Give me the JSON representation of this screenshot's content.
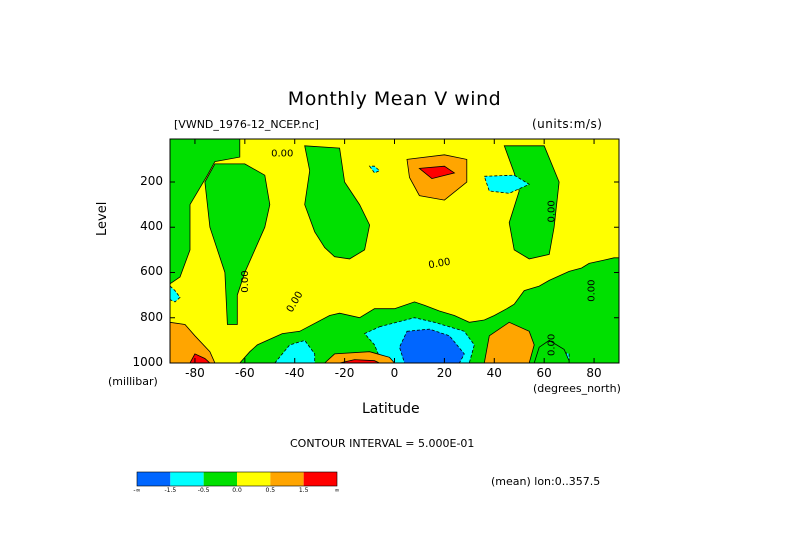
{
  "chart_data": {
    "type": "heatmap",
    "title": "Monthly Mean V wind",
    "dataset": "[VWND_1976-12_NCEP.nc]",
    "units": "(units:m/s)",
    "xlabel": "Latitude",
    "x_unit": "(degrees_north)",
    "ylabel": "Level",
    "y_unit": "(millibar)",
    "xlim": [
      -90,
      90
    ],
    "ylim": [
      1000,
      10
    ],
    "y_inverted": true,
    "x_ticks": [
      "-80",
      "-60",
      "-40",
      "-20",
      "0",
      "20",
      "40",
      "60",
      "80"
    ],
    "x_tick_values": [
      -80,
      -60,
      -40,
      -20,
      0,
      20,
      40,
      60,
      80
    ],
    "y_ticks": [
      "200",
      "400",
      "600",
      "800",
      "1000"
    ],
    "y_tick_values": [
      200,
      400,
      600,
      800,
      1000
    ],
    "contour_label": "0.00",
    "contour_interval": "CONTOUR INTERVAL = 5.000E-01",
    "mean_note": "(mean) lon:0..357.5",
    "colorbar": {
      "colors": [
        "#0066ff",
        "#00ffff",
        "#00e000",
        "#ffff00",
        "#ffa500",
        "#ff0000"
      ],
      "tick_labels": [
        "-∞",
        "-1.5",
        "-0.5",
        "0.0",
        "0.5",
        "1.5",
        "∞"
      ]
    },
    "regions": [
      {
        "level": 0,
        "color": "#00e000",
        "poly": [
          [
            -90,
            10
          ],
          [
            90,
            10
          ],
          [
            90,
            1000
          ],
          [
            -90,
            1000
          ]
        ]
      },
      {
        "level": 1,
        "color": "#ffff00",
        "poly": [
          [
            -90,
            10
          ],
          [
            -62,
            10
          ],
          [
            -62,
            90
          ],
          [
            -72,
            110
          ],
          [
            -75,
            170
          ],
          [
            -82,
            300
          ],
          [
            -82,
            500
          ],
          [
            -86,
            620
          ],
          [
            -90,
            650
          ],
          [
            -90,
            1000
          ],
          [
            -62,
            1000
          ],
          [
            -58,
            950
          ],
          [
            -55,
            920
          ],
          [
            -45,
            870
          ],
          [
            -38,
            860
          ],
          [
            -26,
            790
          ],
          [
            -22,
            780
          ],
          [
            -14,
            800
          ],
          [
            -8,
            760
          ],
          [
            0,
            760
          ],
          [
            8,
            730
          ],
          [
            12,
            745
          ],
          [
            18,
            770
          ],
          [
            24,
            790
          ],
          [
            28,
            810
          ],
          [
            30,
            820
          ],
          [
            36,
            810
          ],
          [
            40,
            790
          ],
          [
            45,
            760
          ],
          [
            48,
            740
          ],
          [
            52,
            680
          ],
          [
            58,
            660
          ],
          [
            62,
            635
          ],
          [
            70,
            595
          ],
          [
            75,
            580
          ],
          [
            78,
            560
          ],
          [
            84,
            545
          ],
          [
            88,
            535
          ],
          [
            90,
            535
          ],
          [
            90,
            10
          ]
        ]
      },
      {
        "level": 0,
        "color": "#00e000",
        "poly": [
          [
            -72,
            120
          ],
          [
            -60,
            120
          ],
          [
            -52,
            170
          ],
          [
            -50,
            300
          ],
          [
            -52,
            400
          ],
          [
            -56,
            500
          ],
          [
            -60,
            600
          ],
          [
            -63,
            700
          ],
          [
            -63,
            830
          ],
          [
            -67,
            830
          ],
          [
            -68,
            600
          ],
          [
            -74,
            400
          ],
          [
            -76,
            200
          ]
        ]
      },
      {
        "level": 0,
        "color": "#00e000",
        "poly": [
          [
            -36,
            40
          ],
          [
            -22,
            50
          ],
          [
            -20,
            200
          ],
          [
            -14,
            300
          ],
          [
            -10,
            390
          ],
          [
            -12,
            500
          ],
          [
            -18,
            540
          ],
          [
            -24,
            530
          ],
          [
            -28,
            490
          ],
          [
            -32,
            420
          ],
          [
            -36,
            300
          ],
          [
            -34,
            150
          ]
        ]
      },
      {
        "level": 0,
        "color": "#00e000",
        "poly": [
          [
            44,
            40
          ],
          [
            60,
            40
          ],
          [
            66,
            200
          ],
          [
            64,
            400
          ],
          [
            62,
            520
          ],
          [
            54,
            540
          ],
          [
            48,
            500
          ],
          [
            46,
            380
          ],
          [
            50,
            240
          ],
          [
            48,
            160
          ]
        ]
      },
      {
        "level": 2,
        "color": "#ffa500",
        "poly": [
          [
            5,
            100
          ],
          [
            20,
            80
          ],
          [
            29,
            100
          ],
          [
            29,
            200
          ],
          [
            20,
            280
          ],
          [
            10,
            260
          ],
          [
            6,
            180
          ]
        ]
      },
      {
        "level": 3,
        "color": "#ff0000",
        "poly": [
          [
            10,
            140
          ],
          [
            20,
            130
          ],
          [
            24,
            160
          ],
          [
            15,
            185
          ]
        ]
      },
      {
        "level": -1,
        "color": "#00ffff",
        "poly": [
          [
            36,
            175
          ],
          [
            48,
            170
          ],
          [
            54,
            210
          ],
          [
            46,
            250
          ],
          [
            38,
            240
          ]
        ]
      },
      {
        "level": -1,
        "color": "#00ffff",
        "poly": [
          [
            -10,
            130
          ],
          [
            -8,
            160
          ],
          [
            -6,
            150
          ],
          [
            -8,
            130
          ]
        ]
      },
      {
        "level": -1,
        "color": "#00ffff",
        "poly": [
          [
            -6,
            840
          ],
          [
            8,
            800
          ],
          [
            16,
            820
          ],
          [
            28,
            860
          ],
          [
            32,
            920
          ],
          [
            30,
            1000
          ],
          [
            -5,
            1000
          ],
          [
            -8,
            920
          ],
          [
            -12,
            870
          ]
        ]
      },
      {
        "level": -2,
        "color": "#0066ff",
        "poly": [
          [
            5,
            860
          ],
          [
            14,
            850
          ],
          [
            22,
            880
          ],
          [
            28,
            960
          ],
          [
            26,
            1000
          ],
          [
            4,
            1000
          ],
          [
            2,
            930
          ]
        ]
      },
      {
        "level": -1,
        "color": "#00ffff",
        "poly": [
          [
            -48,
            1000
          ],
          [
            -42,
            920
          ],
          [
            -36,
            900
          ],
          [
            -32,
            960
          ],
          [
            -32,
            1000
          ]
        ]
      },
      {
        "level": -1,
        "color": "#00ffff",
        "poly": [
          [
            -90,
            660
          ],
          [
            -88,
            680
          ],
          [
            -86,
            710
          ],
          [
            -88,
            730
          ],
          [
            -90,
            720
          ]
        ]
      },
      {
        "level": -1,
        "color": "#00ffff",
        "poly": [
          [
            62,
            1000
          ],
          [
            64,
            940
          ],
          [
            70,
            960
          ],
          [
            70,
            1000
          ]
        ]
      },
      {
        "level": 2,
        "color": "#ffa500",
        "poly": [
          [
            -28,
            1000
          ],
          [
            -24,
            960
          ],
          [
            -10,
            950
          ],
          [
            -2,
            975
          ],
          [
            0,
            1000
          ]
        ]
      },
      {
        "level": 3,
        "color": "#ff0000",
        "poly": [
          [
            -22,
            1000
          ],
          [
            -16,
            985
          ],
          [
            -8,
            990
          ],
          [
            -6,
            1000
          ]
        ]
      },
      {
        "level": 2,
        "color": "#ffa500",
        "poly": [
          [
            36,
            1000
          ],
          [
            38,
            880
          ],
          [
            46,
            820
          ],
          [
            54,
            860
          ],
          [
            56,
            920
          ],
          [
            54,
            1000
          ]
        ]
      },
      {
        "level": 2,
        "color": "#ffa500",
        "poly": [
          [
            -90,
            820
          ],
          [
            -84,
            830
          ],
          [
            -80,
            880
          ],
          [
            -74,
            950
          ],
          [
            -72,
            1000
          ],
          [
            -90,
            1000
          ]
        ]
      },
      {
        "level": 3,
        "color": "#ff0000",
        "poly": [
          [
            -82,
            1000
          ],
          [
            -80,
            960
          ],
          [
            -76,
            980
          ],
          [
            -74,
            1000
          ]
        ]
      },
      {
        "level": 0,
        "color": "#00e000",
        "poly": [
          [
            56,
            1000
          ],
          [
            58,
            930
          ],
          [
            62,
            900
          ],
          [
            68,
            940
          ],
          [
            70,
            990
          ],
          [
            70,
            1000
          ]
        ]
      }
    ],
    "contour_labels": [
      {
        "x": -45,
        "y": 75,
        "rot": 0
      },
      {
        "x": -60,
        "y": 640,
        "rot": -90
      },
      {
        "x": -40,
        "y": 730,
        "rot": -60
      },
      {
        "x": 18,
        "y": 560,
        "rot": -10
      },
      {
        "x": 63,
        "y": 330,
        "rot": -90
      },
      {
        "x": 79,
        "y": 680,
        "rot": -90
      },
      {
        "x": 63,
        "y": 920,
        "rot": -90
      }
    ]
  }
}
